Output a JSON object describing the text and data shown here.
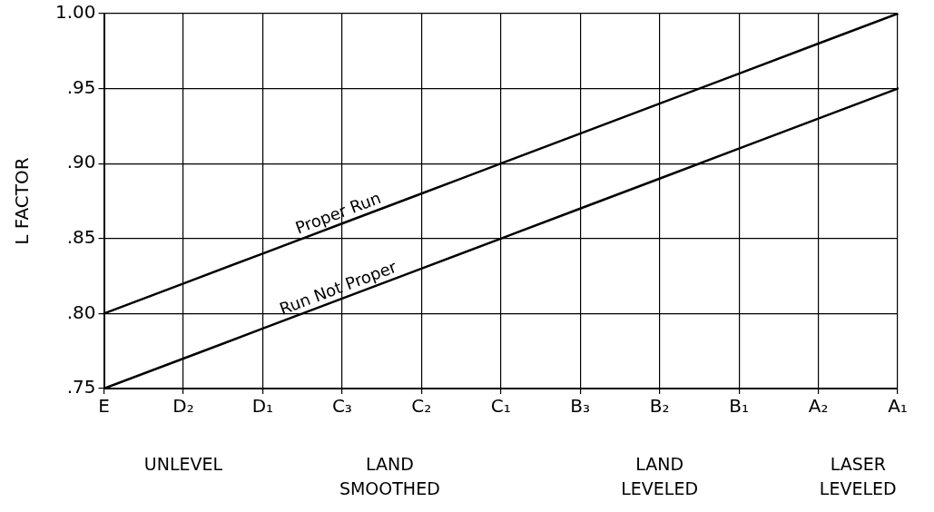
{
  "chart_data": {
    "type": "line",
    "ylabel": "L FACTOR",
    "categories": [
      "E",
      "D₂",
      "D₁",
      "C₃",
      "C₂",
      "C₁",
      "B₃",
      "B₂",
      "B₁",
      "A₂",
      "A₁"
    ],
    "series": [
      {
        "name": "Proper Run",
        "color": "#000000",
        "values": [
          0.8,
          0.82,
          0.84,
          0.86,
          0.88,
          0.9,
          0.92,
          0.94,
          0.96,
          0.98,
          1.0
        ]
      },
      {
        "name": "Run Not Proper",
        "color": "#000000",
        "values": [
          0.75,
          0.77,
          0.79,
          0.81,
          0.83,
          0.85,
          0.87,
          0.89,
          0.91,
          0.93,
          0.95
        ]
      }
    ],
    "ylim": [
      0.75,
      1.0
    ],
    "yticks": [
      {
        "value": 0.75,
        "label": ".75"
      },
      {
        "value": 0.8,
        "label": ".80"
      },
      {
        "value": 0.85,
        "label": ".85"
      },
      {
        "value": 0.9,
        "label": ".90"
      },
      {
        "value": 0.95,
        "label": ".95"
      },
      {
        "value": 1.0,
        "label": "1.00"
      }
    ],
    "grid": true,
    "marker": "none",
    "line_style": "solid",
    "legend": false,
    "annotations": [
      "UNLEVEL",
      "LAND SMOOTHED",
      "LAND LEVELED",
      "LASER LEVELED"
    ]
  }
}
